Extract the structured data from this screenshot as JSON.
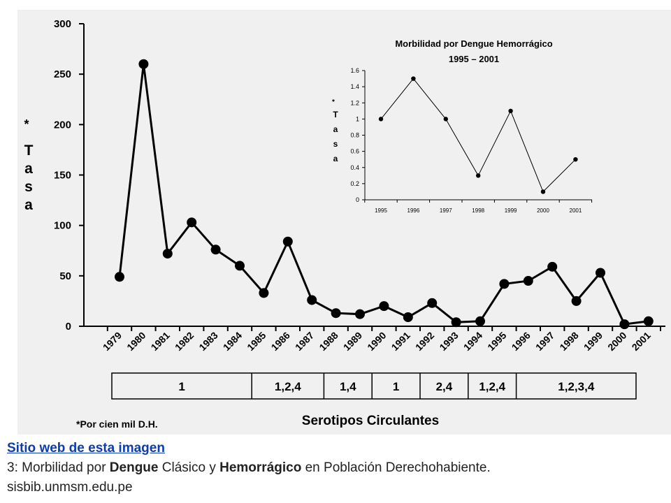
{
  "chart_data": [
    {
      "type": "line",
      "ylabel_star": "*",
      "ylabel": "Tasa",
      "ylim": [
        0,
        300
      ],
      "yticks": [
        0,
        50,
        100,
        150,
        200,
        250,
        300
      ],
      "grid": false,
      "categories": [
        "1979",
        "1980",
        "1981",
        "1982",
        "1983",
        "1984",
        "1985",
        "1986",
        "1987",
        "1988",
        "1989",
        "1990",
        "1991",
        "1992",
        "1993",
        "1994",
        "1995",
        "1996",
        "1997",
        "1998",
        "1999",
        "2000",
        "2001"
      ],
      "values": [
        49,
        260,
        72,
        103,
        76,
        60,
        33,
        84,
        26,
        13,
        12,
        20,
        9,
        23,
        4,
        5,
        42,
        45,
        59,
        25,
        53,
        2,
        5
      ],
      "footnote": "*Por cien mil D.H.",
      "xlabel": "Serotipos Circulantes",
      "serotype_table": [
        {
          "label": "1",
          "from": "1979",
          "to": "1984"
        },
        {
          "label": "1,2,4",
          "from": "1985",
          "to": "1987"
        },
        {
          "label": "1,4",
          "from": "1988",
          "to": "1989"
        },
        {
          "label": "1",
          "from": "1990",
          "to": "1991"
        },
        {
          "label": "2,4",
          "from": "1992",
          "to": "1993"
        },
        {
          "label": "1,2,4",
          "from": "1994",
          "to": "1995"
        },
        {
          "label": "1,2,3,4",
          "from": "1996",
          "to": "2001"
        }
      ]
    },
    {
      "type": "line",
      "title_line1": "Morbilidad por Dengue Hemorrágico",
      "title_line2": "1995 – 2001",
      "ylabel_star": "*",
      "ylabel": "Tasa",
      "ylim": [
        0,
        1.6
      ],
      "yticks": [
        "0",
        "0.2",
        "0.4",
        "0.6",
        "0.8",
        "1",
        "1.2",
        "1.4",
        "1.6"
      ],
      "grid": false,
      "categories": [
        "1995",
        "1996",
        "1997",
        "1998",
        "1999",
        "2000",
        "2001"
      ],
      "values": [
        1.0,
        1.5,
        1.0,
        0.3,
        1.1,
        0.1,
        0.5
      ]
    }
  ],
  "caption": {
    "link_text": "Sitio web de esta imagen",
    "line2_prefix": "3: Morbilidad por ",
    "line2_bold1": "Dengue",
    "line2_mid": " Clásico y ",
    "line2_bold2": "Hemorrágico",
    "line2_suffix": " en Población Derechohabiente.",
    "source": "sisbib.unmsm.edu.pe"
  }
}
